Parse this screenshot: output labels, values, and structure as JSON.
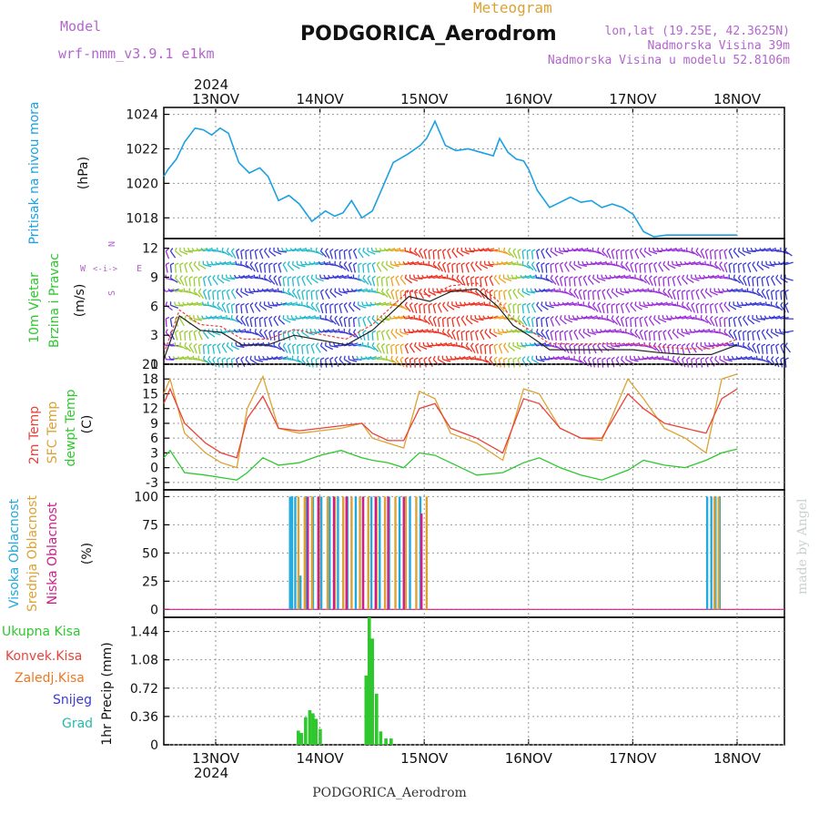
{
  "header": {
    "model_label": "Model",
    "model_name": "wrf-nmm_v3.9.1 e1km",
    "subtitle": "Meteogram",
    "station": "PODGORICA_Aerodrom",
    "coords": "lon,lat (19.25E, 42.3625N)",
    "elevation": "Nadmorska Visina 39m",
    "model_elevation": "Nadmorska Visina u modelu 52.8106m",
    "footer_station": "PODGORICA_Aerodrom",
    "made_by": "made by Angel"
  },
  "colors": {
    "pressure": "#1ba1e2",
    "temp2m": "#e8433a",
    "sfc": "#dca234",
    "dewpt": "#2ec82e",
    "high_cloud": "#22aadd",
    "mid_cloud": "#dca234",
    "low_cloud": "#cc1f8a",
    "precip": "#2ec82e",
    "convective": "#e8433a",
    "frozen": "#ee7722",
    "snow": "#3a3ad6",
    "hail": "#22bbaa",
    "violet": "#b266cc",
    "wind_label": "#2ec82e"
  },
  "time_axis": {
    "top_year": "2024",
    "bottom_year": "2024",
    "days": [
      "13NOV",
      "14NOV",
      "15NOV",
      "16NOV",
      "17NOV",
      "18NOV"
    ]
  },
  "chart_data": [
    {
      "type": "line",
      "panel": "pressure",
      "ylabel": "Pritisak na nivou mora",
      "units": "(hPa)",
      "ylim": [
        1016.8,
        1024.4
      ],
      "yticks": [
        "1018",
        "1020",
        "1022",
        "1024"
      ],
      "x_days": [
        0,
        0.04,
        0.12,
        0.2,
        0.3,
        0.38,
        0.46,
        0.54,
        0.62,
        0.72,
        0.82,
        0.92,
        1.0,
        1.1,
        1.2,
        1.3,
        1.42,
        1.55,
        1.64,
        1.72,
        1.8,
        1.9,
        2.0,
        2.1,
        2.2,
        2.34,
        2.46,
        2.52,
        2.6,
        2.7,
        2.8,
        2.92,
        3.04,
        3.16,
        3.22,
        3.3,
        3.38,
        3.45,
        3.5,
        3.58,
        3.7,
        3.8,
        3.9,
        4.0,
        4.1,
        4.2,
        4.3,
        4.4,
        4.5,
        4.6,
        4.7,
        4.82,
        4.94,
        5.06,
        5.16,
        5.26,
        5.34,
        5.42,
        5.5
      ],
      "series": [
        {
          "values": [
            1020.4,
            1020.8,
            1021.4,
            1022.4,
            1023.2,
            1023.1,
            1022.8,
            1023.2,
            1022.9,
            1021.2,
            1020.6,
            1020.9,
            1020.4,
            1019.0,
            1019.3,
            1018.8,
            1017.8,
            1018.4,
            1018.1,
            1018.3,
            1019.0,
            1018.0,
            1018.4,
            1019.8,
            1021.2,
            1021.7,
            1022.2,
            1022.6,
            1023.6,
            1022.2,
            1021.9,
            1022.0,
            1021.8,
            1021.6,
            1022.6,
            1021.8,
            1021.4,
            1021.3,
            1020.8,
            1019.6,
            1018.6,
            1018.9,
            1019.2,
            1018.9,
            1019.0,
            1018.6,
            1018.8,
            1018.6,
            1018.2,
            1017.2,
            1016.9,
            1017.0,
            1017.0,
            1017.0,
            1017.0,
            1017.0,
            1017.0,
            1017.0,
            1017.0
          ]
        }
      ]
    },
    {
      "type": "line",
      "panel": "wind",
      "ylabel": "10m Vjetar",
      "ylabel2": "Brzina i Pravac",
      "units": "(m/s)",
      "ylim": [
        0,
        13
      ],
      "yticks": [
        "0",
        "3",
        "6",
        "9",
        "12"
      ],
      "compass": [
        "N",
        "W",
        "E",
        "S"
      ],
      "x_days": [
        0,
        0.15,
        0.35,
        0.55,
        0.75,
        1.0,
        1.25,
        1.5,
        1.75,
        2.0,
        2.15,
        2.35,
        2.55,
        2.75,
        3.0,
        3.2,
        3.35,
        3.5,
        3.7,
        4.0,
        4.25,
        4.5,
        4.75,
        5.0,
        5.25,
        5.5
      ],
      "series": [
        {
          "name": "speed",
          "values": [
            0.5,
            5,
            3.5,
            3.3,
            2,
            2,
            3,
            2.5,
            2,
            3.5,
            5,
            7,
            6.5,
            7.5,
            7.8,
            6,
            4,
            3,
            1.5,
            1.5,
            1.5,
            1.5,
            1.2,
            1,
            1,
            2
          ]
        }
      ]
    },
    {
      "type": "line",
      "panel": "temperature",
      "ylabel": "2m Temp",
      "ylabel2": "SFC Temp",
      "ylabel3": "dewpt Temp",
      "units": "(C)",
      "ylim": [
        -4.5,
        21
      ],
      "yticks": [
        "-3",
        "0",
        "3",
        "6",
        "9",
        "12",
        "15",
        "18",
        "21"
      ],
      "x_days": [
        0,
        0.06,
        0.2,
        0.4,
        0.55,
        0.7,
        0.8,
        0.95,
        1.1,
        1.3,
        1.5,
        1.7,
        1.9,
        2.0,
        2.15,
        2.3,
        2.45,
        2.6,
        2.75,
        3.0,
        3.25,
        3.45,
        3.6,
        3.8,
        4.0,
        4.2,
        4.45,
        4.6,
        4.8,
        5.0,
        5.2,
        5.35,
        5.5
      ],
      "series": [
        {
          "name": "2m Temp",
          "values": [
            13,
            16,
            9,
            5,
            3,
            2,
            10,
            14.5,
            8,
            7.5,
            8,
            8.5,
            9,
            7,
            5.5,
            5.5,
            12,
            13,
            8,
            6,
            3,
            14,
            13,
            8,
            6,
            6,
            15,
            12,
            9,
            8,
            7,
            14,
            16
          ]
        },
        {
          "name": "SFC Temp",
          "values": [
            15,
            18,
            7,
            3,
            1,
            0,
            12,
            18.5,
            8,
            7,
            7.5,
            8,
            9,
            6,
            5,
            4,
            15.5,
            14,
            7,
            5,
            1.5,
            16,
            15,
            8,
            6,
            5.5,
            18,
            14,
            8,
            6,
            3,
            18,
            19
          ]
        },
        {
          "name": "dewpt Temp",
          "values": [
            2,
            3.5,
            -1,
            -1.5,
            -2,
            -2.5,
            -1,
            2,
            0.5,
            1,
            2.5,
            3.5,
            2,
            1.5,
            1,
            0,
            3,
            2.5,
            1,
            -1.5,
            -1,
            1,
            2,
            0,
            -1.5,
            -2.5,
            -0.5,
            1.5,
            0.5,
            0,
            1.5,
            3,
            3.8
          ]
        }
      ]
    },
    {
      "type": "bar",
      "panel": "clouds",
      "ylabel": "Visoka Oblacnost",
      "ylabel2": "Srednja Oblacnost",
      "ylabel3": "Niska Oblacnost",
      "units": "(%)",
      "ylim": [
        -7,
        106
      ],
      "yticks": [
        "0",
        "25",
        "50",
        "75",
        "100"
      ],
      "series": [
        {
          "name": "high_x",
          "values": [
            1.2,
            1.22,
            1.25,
            1.3,
            1.36,
            1.42,
            1.5,
            1.58,
            1.66,
            1.75,
            1.83,
            1.9,
            1.98,
            2.06,
            2.15,
            2.25,
            2.35,
            2.45,
            5.2,
            5.24,
            5.28,
            5.32
          ]
        },
        {
          "name": "high_v",
          "values": [
            100,
            100,
            100,
            30,
            100,
            100,
            100,
            100,
            100,
            100,
            100,
            100,
            100,
            100,
            100,
            100,
            100,
            100,
            100,
            100,
            100,
            100
          ]
        },
        {
          "name": "mid_x",
          "values": [
            1.27,
            1.33,
            1.4,
            1.47,
            1.55,
            1.62,
            1.7,
            1.78,
            1.86,
            1.94,
            2.02,
            2.1,
            2.2,
            2.3,
            2.4,
            2.5,
            5.26,
            5.3
          ]
        },
        {
          "name": "mid_v",
          "values": [
            100,
            100,
            100,
            100,
            100,
            100,
            100,
            100,
            100,
            100,
            100,
            100,
            100,
            100,
            100,
            100,
            100,
            100
          ]
        },
        {
          "name": "low_x",
          "values": [
            1.35,
            1.45,
            1.6,
            1.72,
            1.88,
            2.0,
            2.12,
            2.27,
            2.44
          ]
        },
        {
          "name": "low_v",
          "values": [
            100,
            100,
            100,
            100,
            100,
            100,
            100,
            100,
            85
          ]
        }
      ]
    },
    {
      "type": "bar",
      "panel": "precip",
      "ylabel": "1hr Precip (mm)",
      "units": "(mm)",
      "ylim": [
        0,
        1.62
      ],
      "yticks": [
        "0",
        "0.36",
        "0.72",
        "1.08",
        "1.44"
      ],
      "legend": [
        "Ukupna Kisa",
        "Konvek.Kisa",
        "Zaledj.Kisa",
        "Snijeg",
        "Grad"
      ],
      "x_days": [
        1.29,
        1.32,
        1.36,
        1.4,
        1.43,
        1.46,
        1.5,
        1.94,
        1.97,
        2.0,
        2.04,
        2.08,
        2.13,
        2.18
      ],
      "series": [
        {
          "values": [
            0.18,
            0.15,
            0.35,
            0.44,
            0.4,
            0.33,
            0.2,
            0.88,
            1.62,
            1.35,
            0.65,
            0.17,
            0.08,
            0.08
          ]
        }
      ]
    }
  ]
}
